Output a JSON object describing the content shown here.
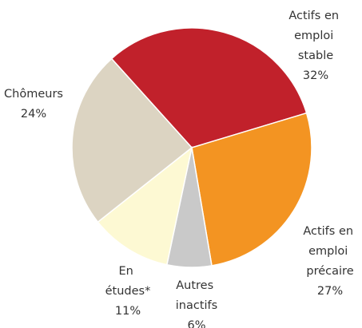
{
  "chart_data": {
    "type": "pie",
    "categories": [
      "Actifs en emploi stable",
      "Actifs en emploi précaire",
      "Autres inactifs",
      "En études*",
      "Chômeurs"
    ],
    "values": [
      32,
      27,
      6,
      11,
      24
    ],
    "value_labels": [
      "32%",
      "27%",
      "6%",
      "11%",
      "24%"
    ],
    "colors": [
      "#c1212b",
      "#f39422",
      "#c9c9c9",
      "#fdf9d3",
      "#dcd4c2"
    ]
  }
}
